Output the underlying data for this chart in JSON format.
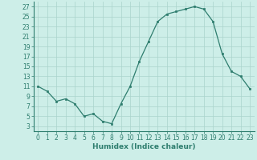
{
  "x": [
    0,
    1,
    2,
    3,
    4,
    5,
    6,
    7,
    8,
    9,
    10,
    11,
    12,
    13,
    14,
    15,
    16,
    17,
    18,
    19,
    20,
    21,
    22,
    23
  ],
  "y": [
    11,
    10,
    8,
    8.5,
    7.5,
    5,
    5.5,
    4,
    3.5,
    7.5,
    11,
    16,
    20,
    24,
    25.5,
    26,
    26.5,
    27,
    26.5,
    24,
    17.5,
    14,
    13,
    10.5
  ],
  "line_color": "#2e7d6e",
  "marker": "s",
  "marker_size": 1.8,
  "bg_color": "#cdeee8",
  "grid_color": "#aad4cc",
  "xlabel": "Humidex (Indice chaleur)",
  "xlim": [
    -0.5,
    23.5
  ],
  "ylim": [
    2,
    28
  ],
  "yticks": [
    3,
    5,
    7,
    9,
    11,
    13,
    15,
    17,
    19,
    21,
    23,
    25,
    27
  ],
  "xticks": [
    0,
    1,
    2,
    3,
    4,
    5,
    6,
    7,
    8,
    9,
    10,
    11,
    12,
    13,
    14,
    15,
    16,
    17,
    18,
    19,
    20,
    21,
    22,
    23
  ],
  "tick_label_fontsize": 5.5,
  "xlabel_fontsize": 6.5
}
